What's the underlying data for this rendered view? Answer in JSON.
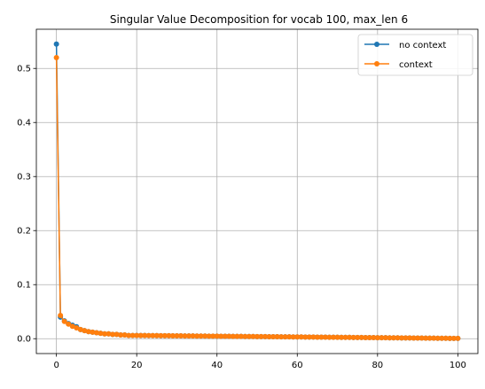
{
  "chart_data": {
    "type": "line",
    "title": "Singular Value Decomposition for vocab 100, max_len 6",
    "xlabel": "",
    "ylabel": "",
    "xlim": [
      -5,
      105
    ],
    "ylim": [
      -0.0275,
      0.5725
    ],
    "x_ticks": [
      0,
      20,
      40,
      60,
      80,
      100
    ],
    "y_ticks": [
      0.0,
      0.1,
      0.2,
      0.3,
      0.4,
      0.5
    ],
    "x_tick_labels": [
      "0",
      "20",
      "40",
      "60",
      "80",
      "100"
    ],
    "y_tick_labels": [
      "0.0",
      "0.1",
      "0.2",
      "0.3",
      "0.4",
      "0.5"
    ],
    "grid": true,
    "legend_position": "top-right",
    "series": [
      {
        "name": "no context",
        "color": "#1f77b4",
        "marker": "circle",
        "head": [
          0.545,
          0.04,
          0.033,
          0.028,
          0.025,
          0.022,
          0.017,
          0.015,
          0.013,
          0.012,
          0.011,
          0.01,
          0.009,
          0.009,
          0.008,
          0.008,
          0.007,
          0.007,
          0.006,
          0.006,
          0.006
        ],
        "tail_start": 0.006,
        "tail_end": 0.0005
      },
      {
        "name": "context",
        "color": "#ff7f0e",
        "marker": "circle",
        "head": [
          0.52,
          0.043,
          0.032,
          0.027,
          0.023,
          0.02,
          0.017,
          0.015,
          0.013,
          0.012,
          0.011,
          0.01,
          0.009,
          0.009,
          0.008,
          0.008,
          0.007,
          0.007,
          0.006,
          0.006,
          0.006
        ],
        "tail_start": 0.006,
        "tail_end": 0.0005
      }
    ]
  }
}
